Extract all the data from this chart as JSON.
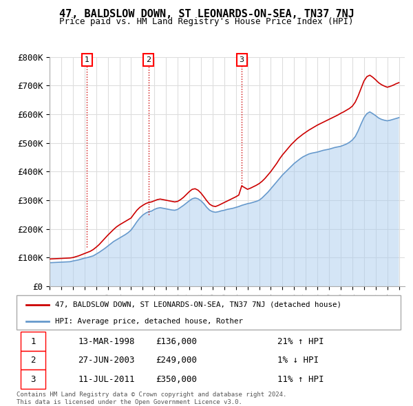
{
  "title": "47, BALDSLOW DOWN, ST LEONARDS-ON-SEA, TN37 7NJ",
  "subtitle": "Price paid vs. HM Land Registry's House Price Index (HPI)",
  "ylim": [
    0,
    800000
  ],
  "xlim_start": 1995.0,
  "xlim_end": 2025.5,
  "legend_line1": "47, BALDSLOW DOWN, ST LEONARDS-ON-SEA, TN37 7NJ (detached house)",
  "legend_line2": "HPI: Average price, detached house, Rother",
  "sale1_date": "13-MAR-1998",
  "sale1_price": "£136,000",
  "sale1_hpi": "21% ↑ HPI",
  "sale1_label": "1",
  "sale1_year": 1998.2,
  "sale1_value": 136000,
  "sale2_date": "27-JUN-2003",
  "sale2_price": "£249,000",
  "sale2_hpi": "1% ↓ HPI",
  "sale2_label": "2",
  "sale2_year": 2003.5,
  "sale2_value": 249000,
  "sale3_date": "11-JUL-2011",
  "sale3_price": "£350,000",
  "sale3_hpi": "11% ↑ HPI",
  "sale3_label": "3",
  "sale3_year": 2011.5,
  "sale3_value": 350000,
  "footer": "Contains HM Land Registry data © Crown copyright and database right 2024.\nThis data is licensed under the Open Government Licence v3.0.",
  "line_color_red": "#cc0000",
  "line_color_blue": "#6699cc",
  "fill_color_blue": "#aaccee",
  "bg_color": "#ffffff",
  "grid_color": "#dddddd",
  "years_hpi": [
    1995.0,
    1995.25,
    1995.5,
    1995.75,
    1996.0,
    1996.25,
    1996.5,
    1996.75,
    1997.0,
    1997.25,
    1997.5,
    1997.75,
    1998.0,
    1998.25,
    1998.5,
    1998.75,
    1999.0,
    1999.25,
    1999.5,
    1999.75,
    2000.0,
    2000.25,
    2000.5,
    2000.75,
    2001.0,
    2001.25,
    2001.5,
    2001.75,
    2002.0,
    2002.25,
    2002.5,
    2002.75,
    2003.0,
    2003.25,
    2003.5,
    2003.75,
    2004.0,
    2004.25,
    2004.5,
    2004.75,
    2005.0,
    2005.25,
    2005.5,
    2005.75,
    2006.0,
    2006.25,
    2006.5,
    2006.75,
    2007.0,
    2007.25,
    2007.5,
    2007.75,
    2008.0,
    2008.25,
    2008.5,
    2008.75,
    2009.0,
    2009.25,
    2009.5,
    2009.75,
    2010.0,
    2010.25,
    2010.5,
    2010.75,
    2011.0,
    2011.25,
    2011.5,
    2011.75,
    2012.0,
    2012.25,
    2012.5,
    2012.75,
    2013.0,
    2013.25,
    2013.5,
    2013.75,
    2014.0,
    2014.25,
    2014.5,
    2014.75,
    2015.0,
    2015.25,
    2015.5,
    2015.75,
    2016.0,
    2016.25,
    2016.5,
    2016.75,
    2017.0,
    2017.25,
    2017.5,
    2017.75,
    2018.0,
    2018.25,
    2018.5,
    2018.75,
    2019.0,
    2019.25,
    2019.5,
    2019.75,
    2020.0,
    2020.25,
    2020.5,
    2020.75,
    2021.0,
    2021.25,
    2021.5,
    2021.75,
    2022.0,
    2022.25,
    2022.5,
    2022.75,
    2023.0,
    2023.25,
    2023.5,
    2023.75,
    2024.0,
    2024.25,
    2024.5,
    2024.75,
    2025.0
  ],
  "hpi_values": [
    82000,
    82500,
    83000,
    83500,
    84000,
    84500,
    85000,
    85500,
    88000,
    90000,
    92000,
    95000,
    98000,
    100000,
    103000,
    106000,
    112000,
    118000,
    125000,
    132000,
    140000,
    148000,
    156000,
    162000,
    168000,
    174000,
    180000,
    187000,
    196000,
    210000,
    225000,
    238000,
    248000,
    255000,
    260000,
    262000,
    268000,
    272000,
    274000,
    272000,
    270000,
    268000,
    266000,
    265000,
    268000,
    275000,
    282000,
    290000,
    298000,
    305000,
    308000,
    305000,
    298000,
    288000,
    275000,
    265000,
    260000,
    258000,
    260000,
    263000,
    265000,
    268000,
    270000,
    272000,
    275000,
    278000,
    282000,
    285000,
    288000,
    290000,
    293000,
    296000,
    300000,
    308000,
    318000,
    328000,
    340000,
    352000,
    364000,
    376000,
    388000,
    398000,
    408000,
    418000,
    428000,
    436000,
    444000,
    451000,
    456000,
    461000,
    464000,
    466000,
    468000,
    471000,
    474000,
    476000,
    478000,
    481000,
    484000,
    486000,
    488000,
    492000,
    496000,
    502000,
    510000,
    522000,
    542000,
    566000,
    588000,
    602000,
    608000,
    602000,
    595000,
    587000,
    582000,
    579000,
    577000,
    579000,
    582000,
    585000,
    588000
  ],
  "red_values": [
    95000,
    95500,
    96000,
    96500,
    97000,
    97500,
    98000,
    98500,
    100000,
    103000,
    106000,
    110000,
    114000,
    118000,
    122000,
    128000,
    136000,
    145000,
    156000,
    167000,
    178000,
    188000,
    198000,
    207000,
    214000,
    220000,
    226000,
    232000,
    238000,
    252000,
    265000,
    275000,
    282000,
    288000,
    292000,
    294000,
    298000,
    302000,
    304000,
    302000,
    300000,
    298000,
    296000,
    294000,
    296000,
    302000,
    310000,
    320000,
    330000,
    338000,
    340000,
    335000,
    325000,
    312000,
    298000,
    286000,
    280000,
    278000,
    282000,
    287000,
    292000,
    297000,
    302000,
    307000,
    312000,
    318000,
    350000,
    344000,
    338000,
    342000,
    347000,
    352000,
    358000,
    366000,
    376000,
    388000,
    400000,
    414000,
    428000,
    444000,
    458000,
    470000,
    482000,
    494000,
    504000,
    514000,
    522000,
    530000,
    537000,
    544000,
    550000,
    556000,
    562000,
    567000,
    572000,
    577000,
    582000,
    587000,
    592000,
    597000,
    603000,
    608000,
    614000,
    620000,
    628000,
    642000,
    664000,
    690000,
    716000,
    731000,
    736000,
    729000,
    720000,
    710000,
    703000,
    698000,
    694000,
    697000,
    701000,
    706000,
    710000
  ]
}
